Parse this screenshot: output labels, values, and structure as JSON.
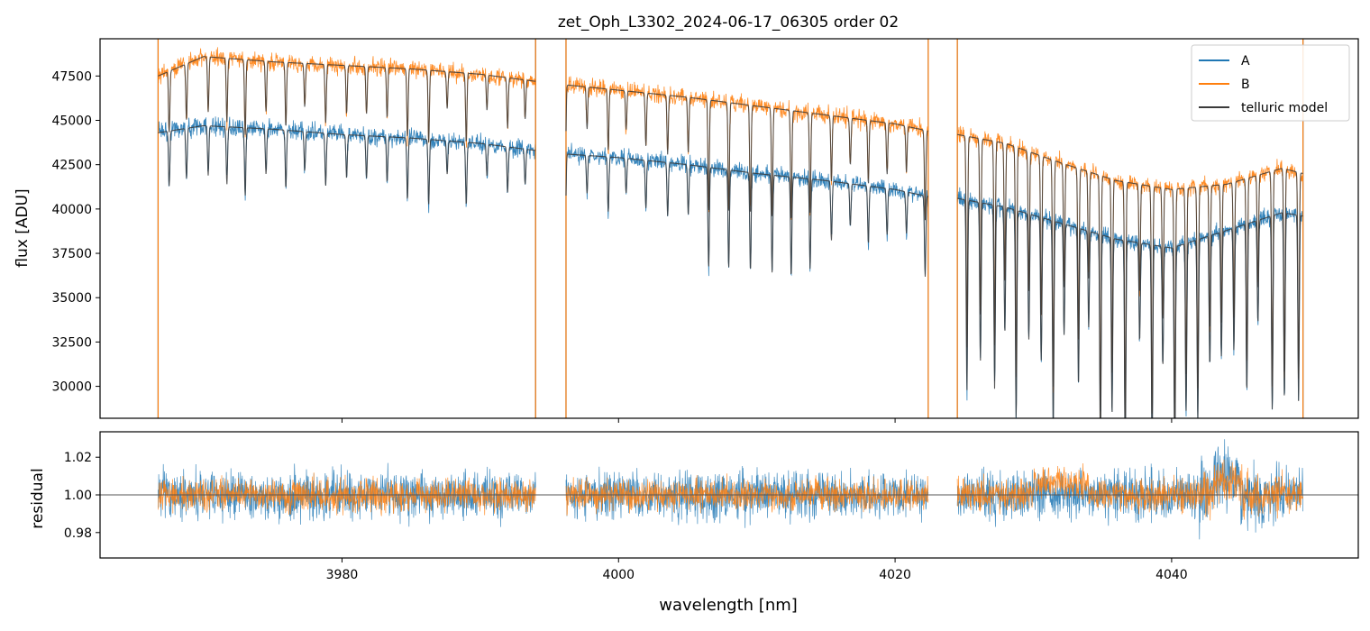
{
  "figure": {
    "title": "zet_Oph_L3302_2024-06-17_06305  order 02"
  },
  "colors": {
    "A": "#1f77b4",
    "B": "#ff7f0e",
    "model": "#3a3a3a",
    "refline": "#555555"
  },
  "legend": {
    "placement": "top-right",
    "entries": [
      "A",
      "B",
      "telluric model"
    ]
  },
  "chart_data": [
    {
      "type": "line",
      "panel": "top",
      "title": "zet_Oph_L3302_2024-06-17_06305  order 02",
      "ylabel": "flux [ADU]",
      "xlabel": "",
      "xlim": [
        3962.5,
        4053.5
      ],
      "ylim": [
        28200,
        49600
      ],
      "yticks": [
        30000,
        32500,
        35000,
        37500,
        40000,
        42500,
        45000,
        47500
      ],
      "ytick_labels": [
        "30000",
        "32500",
        "35000",
        "37500",
        "40000",
        "42500",
        "45000",
        "47500"
      ],
      "xticks": [
        3980,
        4000,
        4020,
        4040
      ],
      "xtick_labels": [
        "",
        "",
        "",
        ""
      ],
      "grid": false,
      "segments": [
        [
          3966.7,
          3994.0
        ],
        [
          3996.2,
          4022.4
        ],
        [
          4024.5,
          4049.5
        ]
      ],
      "series": [
        {
          "name": "A",
          "x": [
            3966.7,
            3970,
            3975,
            3980,
            3985,
            3990,
            3994.0,
            3996.2,
            4000,
            4005,
            4010,
            4015,
            4020,
            4022.4,
            4024.5,
            4028,
            4032,
            4036,
            4040,
            4044,
            4048,
            4049.5
          ],
          "y": [
            44300,
            44700,
            44500,
            44200,
            44000,
            43700,
            43300,
            43100,
            42900,
            42500,
            42000,
            41600,
            41100,
            40700,
            40600,
            40100,
            39200,
            38300,
            37800,
            38800,
            39800,
            39600
          ]
        },
        {
          "name": "B",
          "x": [
            3966.7,
            3970,
            3975,
            3980,
            3985,
            3990,
            3994.0,
            3996.2,
            4000,
            4005,
            4010,
            4015,
            4020,
            4022.4,
            4024.5,
            4028,
            4032,
            4036,
            4040,
            4044,
            4048,
            4049.5
          ],
          "y": [
            47500,
            48600,
            48300,
            48100,
            47900,
            47600,
            47200,
            47000,
            46700,
            46300,
            45800,
            45300,
            44800,
            44400,
            44200,
            43700,
            42600,
            41600,
            41100,
            41400,
            42300,
            42000
          ]
        },
        {
          "name": "telluric model",
          "x": [
            3966.7,
            3975,
            3985,
            3994.0,
            3996.2,
            4005,
            4015,
            4022.4,
            4024.5,
            4032,
            4040,
            4049.5
          ],
          "y": [
            44300,
            44500,
            44000,
            43300,
            43100,
            42500,
            41600,
            40700,
            40600,
            39200,
            37800,
            39600
          ]
        }
      ]
    },
    {
      "type": "line",
      "panel": "bottom",
      "ylabel": "residual",
      "xlabel": "wavelength [nm]",
      "xlim": [
        3962.5,
        4053.5
      ],
      "ylim": [
        0.9665,
        1.0335
      ],
      "yticks": [
        0.98,
        1.0,
        1.02
      ],
      "ytick_labels": [
        "0.98",
        "1.00",
        "1.02"
      ],
      "xticks": [
        3980,
        4000,
        4020,
        4040
      ],
      "xtick_labels": [
        "3980",
        "4000",
        "4020",
        "4040"
      ],
      "reference_line": 1.0,
      "grid": false,
      "series": [
        {
          "name": "A",
          "noise_amplitude": 0.018,
          "x": [
            3966.7,
            3994.0,
            3996.2,
            4022.4,
            4024.5,
            4049.5
          ],
          "y": [
            1.0,
            1.0,
            1.0,
            1.0,
            1.0,
            1.0
          ]
        },
        {
          "name": "B",
          "noise_amplitude": 0.012,
          "x": [
            3966.7,
            3994.0,
            3996.2,
            4022.4,
            4024.5,
            4049.5
          ],
          "y": [
            1.0,
            1.0,
            1.0,
            1.0,
            1.0,
            1.0
          ]
        }
      ]
    }
  ]
}
